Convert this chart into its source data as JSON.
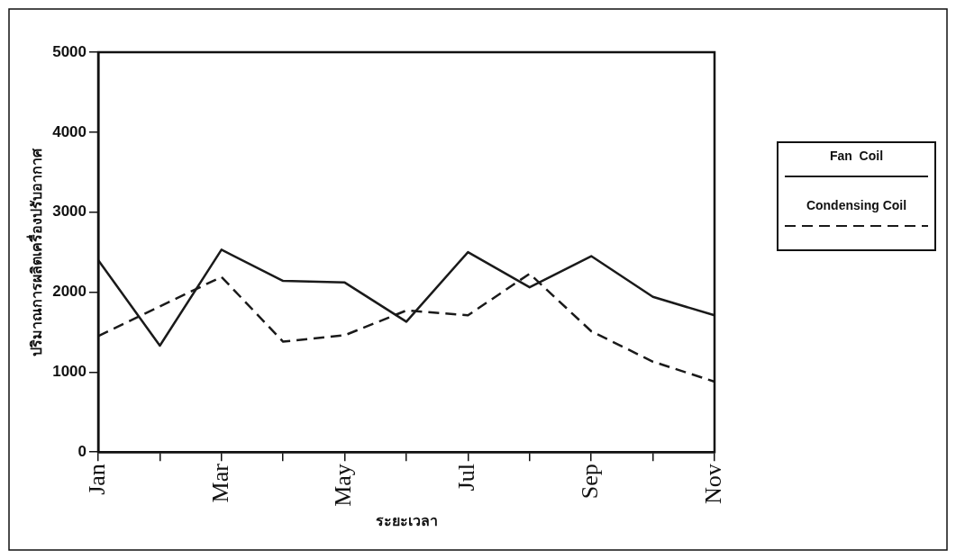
{
  "chart_data": {
    "type": "line",
    "xlabel": "ระยะเวลา",
    "ylabel": "ปริมาณการผลิตเครื่องปรับอากาศ",
    "categories": [
      "Jan",
      null,
      "Mar",
      null,
      "May",
      null,
      "Jul",
      null,
      "Sep",
      null,
      "Nov"
    ],
    "series": [
      {
        "name": "Fan  Coil",
        "color": "#1a1a1a",
        "line_style": "solid",
        "values": [
          2400,
          1330,
          2530,
          2140,
          2120,
          1630,
          2500,
          2060,
          2450,
          1940,
          1710
        ]
      },
      {
        "name": "Condensing Coil",
        "color": "#1a1a1a",
        "line_style": "dashed",
        "values": [
          1450,
          1820,
          2190,
          1380,
          1460,
          1770,
          1710,
          2230,
          1510,
          1130,
          880
        ]
      }
    ],
    "ylim": [
      0,
      5000
    ],
    "yticks": [
      0,
      1000,
      2000,
      3000,
      4000,
      5000
    ],
    "grid": false,
    "legend": "right",
    "marker": "none"
  }
}
